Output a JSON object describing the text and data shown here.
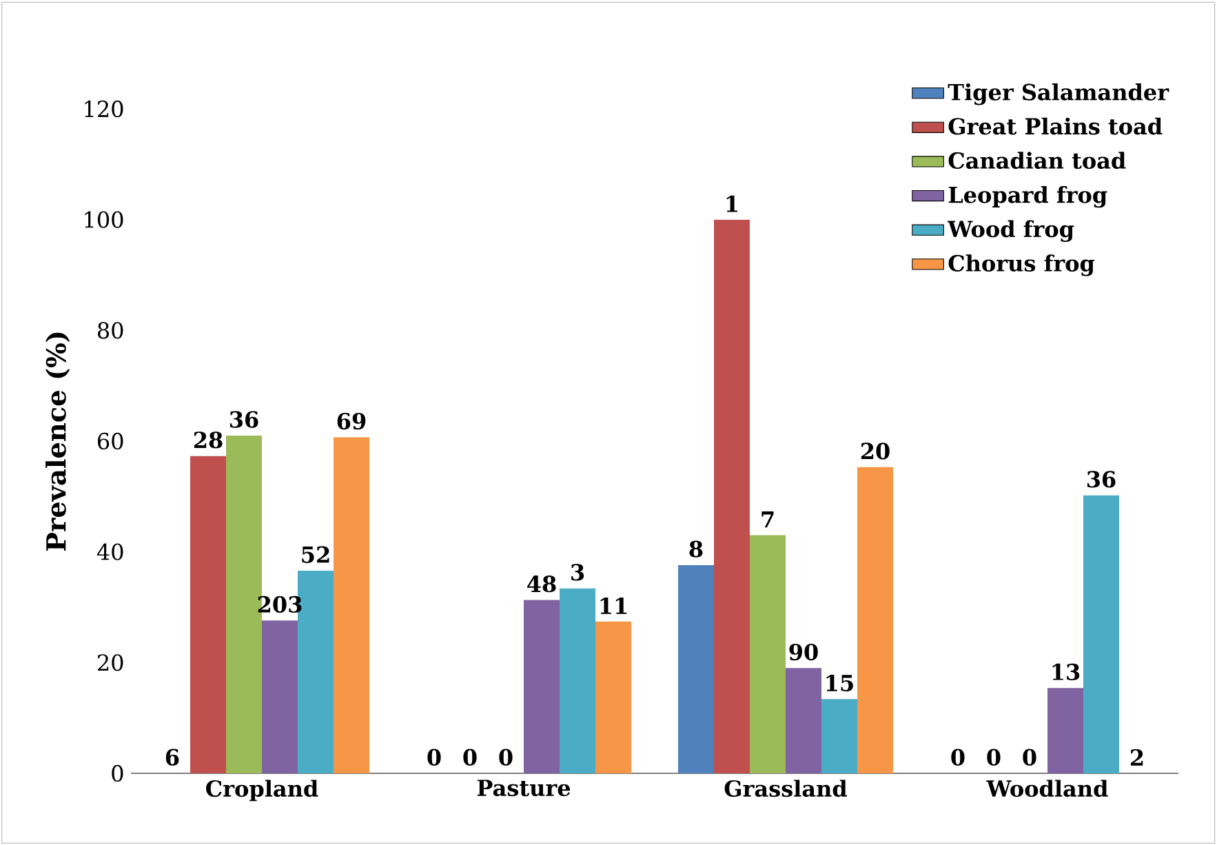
{
  "chart_data": {
    "type": "bar",
    "ylabel": "Prevalence (%)",
    "categories": [
      "Cropland",
      "Pasture",
      "Grassland",
      "Woodland"
    ],
    "series": [
      {
        "name": "Tiger Salamander",
        "color": "#4f81bd",
        "values": [
          0,
          0,
          37.6,
          0
        ]
      },
      {
        "name": "Great Plains toad",
        "color": "#c0504d",
        "values": [
          57.3,
          0,
          100,
          0
        ]
      },
      {
        "name": "Canadian toad",
        "color": "#9bbb59",
        "values": [
          61,
          0,
          43,
          0
        ]
      },
      {
        "name": "Leopard frog",
        "color": "#8064a2",
        "values": [
          27.6,
          31.3,
          19,
          15.4
        ]
      },
      {
        "name": "Wood frog",
        "color": "#4bacc6",
        "values": [
          36.6,
          33.4,
          13.4,
          50.2
        ]
      },
      {
        "name": "Chorus frog",
        "color": "#f79646",
        "values": [
          60.7,
          27.4,
          55.3,
          0
        ]
      }
    ],
    "annotations": [
      "6",
      "28",
      "36",
      "203",
      "52",
      "69",
      "0",
      "0",
      "0",
      "48",
      "3",
      "11",
      "8",
      "1",
      "7",
      "90",
      "15",
      "20",
      "0",
      "0",
      "0",
      "13",
      "36",
      "2"
    ],
    "ylim": [
      0,
      120
    ],
    "yticks": [
      0,
      20,
      40,
      60,
      80,
      100,
      120
    ],
    "grid": false,
    "legend": "top right"
  }
}
